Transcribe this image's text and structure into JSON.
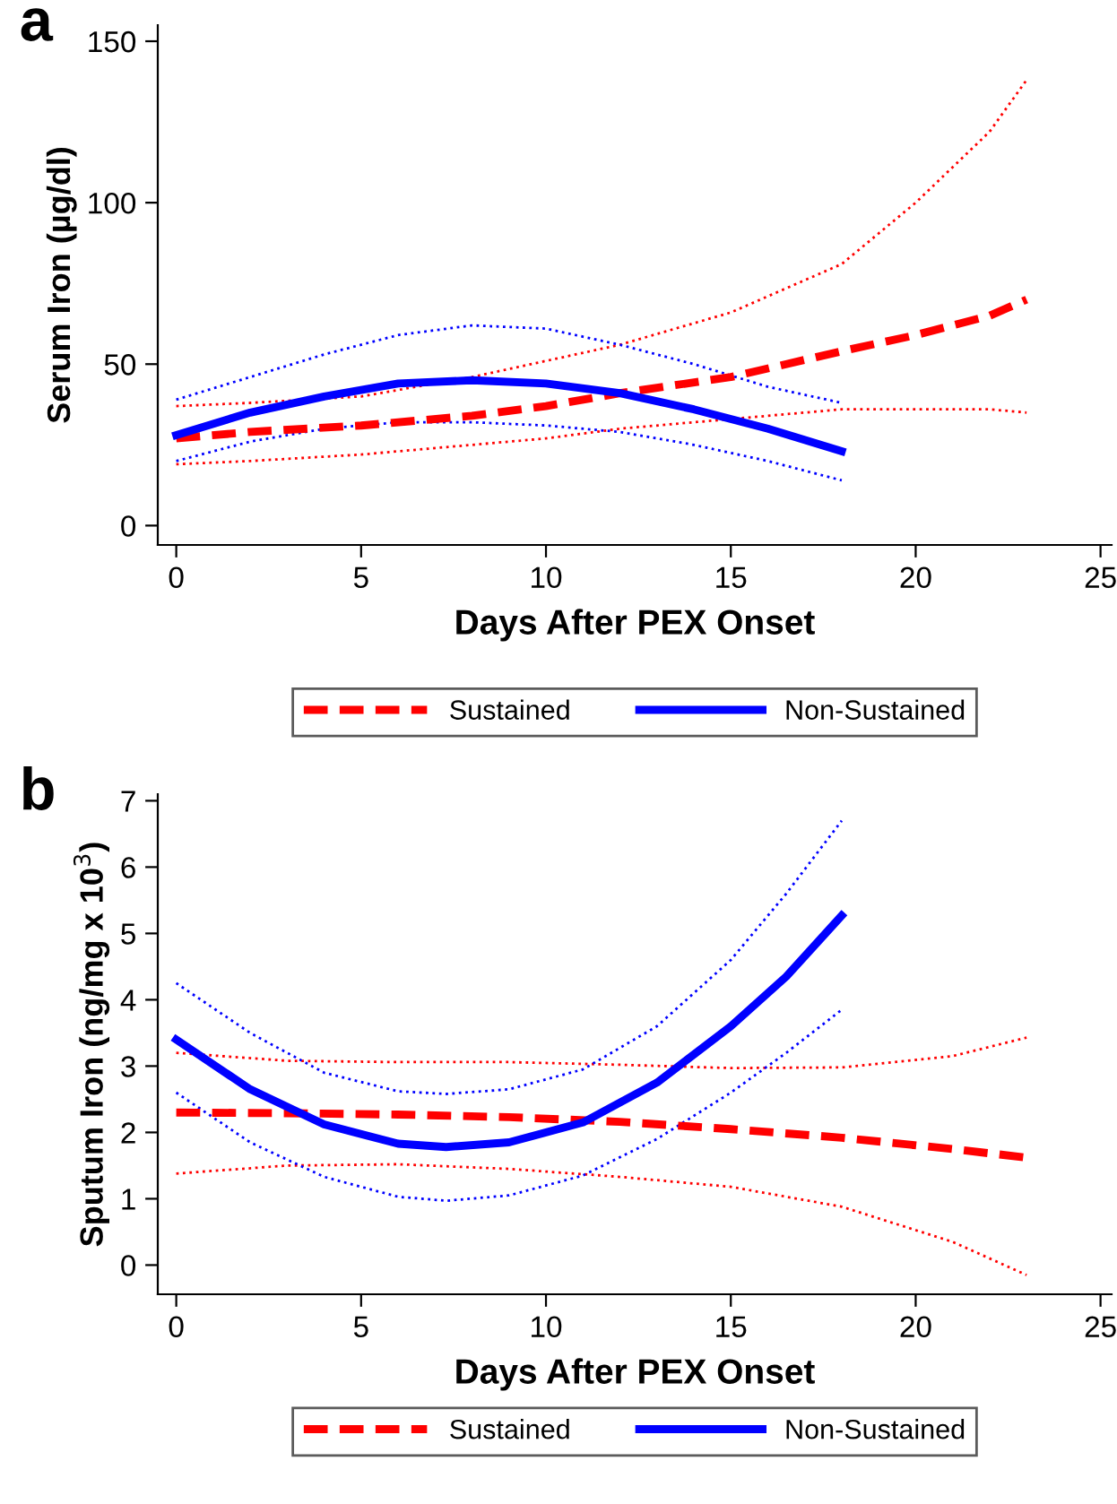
{
  "chart_data": [
    {
      "type": "line",
      "title": "a",
      "xlabel": "Days After PEX Onset",
      "ylabel": "Serum Iron (µg/dl)",
      "xlim": [
        -0.5,
        25.3
      ],
      "ylim": [
        -6,
        155
      ],
      "xticks": [
        0,
        5,
        10,
        15,
        20,
        25
      ],
      "yticks": [
        0,
        50,
        100,
        150
      ],
      "grid": false,
      "legend": "bottom",
      "marker": "none",
      "series": [
        {
          "name": "Sustained",
          "color": "#ff0000",
          "line_style": "dashed",
          "x": [
            0,
            2,
            5,
            8,
            10,
            12,
            15,
            18,
            20,
            22,
            23
          ],
          "values": [
            27,
            29,
            31,
            34,
            37,
            41,
            46,
            54,
            59,
            65,
            70
          ]
        },
        {
          "name": "Non-Sustained",
          "color": "#0000ff",
          "line_style": "solid",
          "x": [
            0,
            2,
            4,
            6,
            8,
            10,
            12,
            14,
            16,
            18
          ],
          "values": [
            28,
            35,
            40,
            44,
            45,
            44,
            41,
            36,
            30,
            23
          ]
        },
        {
          "color": "#ff0000",
          "line_style": "dotted",
          "x": [
            0,
            2,
            5,
            8,
            10,
            12,
            15,
            18,
            20,
            22,
            23
          ],
          "values": [
            37,
            38,
            40,
            46,
            51,
            56,
            66,
            81,
            100,
            122,
            138
          ]
        },
        {
          "color": "#ff0000",
          "line_style": "dotted",
          "x": [
            0,
            2,
            5,
            8,
            10,
            12,
            15,
            18,
            20,
            22,
            23
          ],
          "values": [
            19,
            20,
            22,
            25,
            27,
            30,
            33,
            36,
            36,
            36,
            35
          ]
        },
        {
          "color": "#0000ff",
          "line_style": "dotted",
          "x": [
            0,
            2,
            4,
            6,
            8,
            10,
            12,
            14,
            16,
            18
          ],
          "values": [
            39,
            46,
            53,
            59,
            62,
            61,
            56,
            50,
            43,
            38
          ]
        },
        {
          "color": "#0000ff",
          "line_style": "dotted",
          "x": [
            0,
            2,
            4,
            6,
            8,
            10,
            12,
            14,
            16,
            18
          ],
          "values": [
            20,
            26,
            30,
            32,
            32,
            31,
            29,
            25,
            20,
            14
          ]
        }
      ]
    },
    {
      "type": "line",
      "title": "b",
      "xlabel": "Days After PEX Onset",
      "ylabel": "Sputum Iron (ng/mg x 10$^{3}$)",
      "xlim": [
        -0.5,
        25.3
      ],
      "ylim": [
        -0.44,
        7.1
      ],
      "xticks": [
        0,
        5,
        10,
        15,
        20,
        25
      ],
      "yticks": [
        0,
        1,
        2,
        3,
        4,
        5,
        6,
        7
      ],
      "grid": false,
      "legend": "bottom",
      "marker": "none",
      "series": [
        {
          "name": "Sustained",
          "color": "#ff0000",
          "line_style": "dashed",
          "x": [
            0,
            3,
            6,
            9,
            12,
            15,
            18,
            21,
            23
          ],
          "values": [
            2.3,
            2.29,
            2.27,
            2.23,
            2.16,
            2.05,
            1.92,
            1.75,
            1.62
          ]
        },
        {
          "name": "Non-Sustained",
          "color": "#0000ff",
          "line_style": "solid",
          "x": [
            0,
            2,
            4,
            6,
            7.3,
            9,
            11,
            13,
            15,
            16.5,
            18
          ],
          "values": [
            3.4,
            2.65,
            2.12,
            1.83,
            1.78,
            1.85,
            2.15,
            2.75,
            3.6,
            4.35,
            5.27
          ]
        },
        {
          "color": "#ff0000",
          "line_style": "dotted",
          "x": [
            0,
            3,
            6,
            9,
            12,
            15,
            18,
            21,
            23
          ],
          "values": [
            3.2,
            3.08,
            3.06,
            3.06,
            3.02,
            2.97,
            2.98,
            3.15,
            3.43
          ]
        },
        {
          "color": "#ff0000",
          "line_style": "dotted",
          "x": [
            0,
            3,
            6,
            9,
            12,
            15,
            18,
            21,
            23
          ],
          "values": [
            1.38,
            1.5,
            1.52,
            1.45,
            1.33,
            1.18,
            0.88,
            0.35,
            -0.15
          ]
        },
        {
          "color": "#0000ff",
          "line_style": "dotted",
          "x": [
            0,
            2,
            4,
            6,
            7.3,
            9,
            11,
            13,
            15,
            16.5,
            18
          ],
          "values": [
            4.25,
            3.5,
            2.9,
            2.62,
            2.58,
            2.65,
            2.95,
            3.6,
            4.6,
            5.6,
            6.7
          ]
        },
        {
          "color": "#0000ff",
          "line_style": "dotted",
          "x": [
            0,
            2,
            4,
            6,
            7.3,
            9,
            11,
            13,
            15,
            16.5,
            18
          ],
          "values": [
            2.6,
            1.85,
            1.33,
            1.03,
            0.97,
            1.05,
            1.35,
            1.9,
            2.6,
            3.2,
            3.85
          ]
        }
      ]
    }
  ]
}
